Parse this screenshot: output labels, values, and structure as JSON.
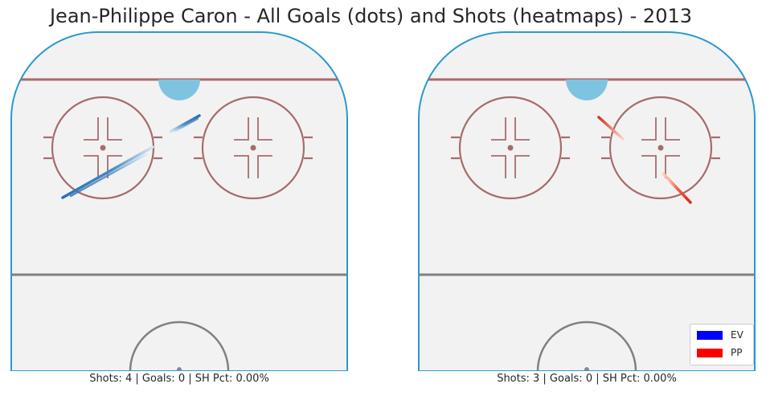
{
  "chart_data": {
    "type": "heatmap",
    "title": "Jean-Philippe Caron - All Goals (dots) and Shots (heatmaps) - 2013",
    "panels": [
      {
        "caption": "Shots: 4 | Goals: 0 | SH Pct: 0.00%",
        "series": [
          {
            "name": "EV",
            "shots": 4,
            "goals": 0
          }
        ]
      },
      {
        "caption": "Shots: 3 | Goals: 0 | SH Pct: 0.00%",
        "series": [
          {
            "name": "PP",
            "shots": 3,
            "goals": 0
          }
        ]
      }
    ],
    "legend": {
      "position": "bottom-right",
      "entries": [
        {
          "name": "EV",
          "color": "#0000ff"
        },
        {
          "name": "PP",
          "color": "#ff0000"
        }
      ]
    },
    "colors": {
      "ice": "#f2f2f2",
      "boards": "#2b9ad0",
      "red_line": "#a86b6b",
      "center_line": "#808080",
      "crease": "#7ec4e0",
      "ev_heat": "#2b6fb3",
      "pp_heat": "#e03a2a"
    }
  }
}
